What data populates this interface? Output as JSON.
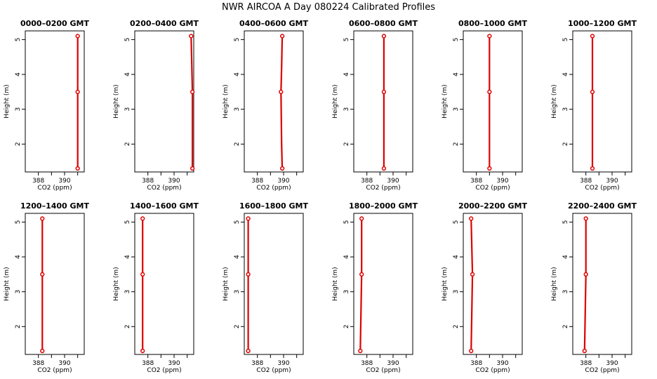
{
  "figure": {
    "title": "NWR AIRCOA A  Day 080224  Calibrated Profiles",
    "colors": {
      "line": "#dd0000",
      "axis": "#000000",
      "background": "#ffffff"
    }
  },
  "chart_data": [
    {
      "type": "line",
      "title": "0000–0200 GMT",
      "xlabel": "CO2 (ppm)",
      "ylabel": "Height (m)",
      "xlim": [
        387,
        391.5
      ],
      "ylim": [
        1.2,
        5.25
      ],
      "xticks": [
        388,
        389,
        390,
        391
      ],
      "xtick_labels": [
        "388",
        "",
        "390",
        ""
      ],
      "yticks": [
        2,
        3,
        4,
        5
      ],
      "points": {
        "x": [
          391.0,
          391.0,
          391.0
        ],
        "y": [
          1.3,
          3.5,
          5.1
        ]
      },
      "segments": [
        {
          "x": [
            391.0,
            391.0,
            391.0
          ],
          "y": [
            1.3,
            3.4,
            3.7
          ]
        },
        {
          "x": [
            391.0,
            391.0
          ],
          "y": [
            3.7,
            5.1
          ]
        }
      ]
    },
    {
      "type": "line",
      "title": "0200–0400 GMT",
      "xlabel": "CO2 (ppm)",
      "ylabel": "Height (m)",
      "xlim": [
        387,
        391.5
      ],
      "ylim": [
        1.2,
        5.25
      ],
      "xticks": [
        388,
        389,
        390,
        391
      ],
      "xtick_labels": [
        "388",
        "",
        "390",
        ""
      ],
      "yticks": [
        2,
        3,
        4,
        5
      ],
      "points": {
        "x": [
          391.4,
          391.4,
          391.3
        ],
        "y": [
          1.3,
          3.5,
          5.1
        ]
      },
      "segments": [
        {
          "x": [
            391.4,
            391.4,
            391.35
          ],
          "y": [
            1.3,
            3.5,
            4.3
          ]
        },
        {
          "x": [
            391.35,
            391.3
          ],
          "y": [
            4.3,
            5.1
          ]
        }
      ]
    },
    {
      "type": "line",
      "title": "0400–0600 GMT",
      "xlabel": "CO2 (ppm)",
      "ylabel": "Height (m)",
      "xlim": [
        387,
        391.5
      ],
      "ylim": [
        1.2,
        5.25
      ],
      "xticks": [
        388,
        389,
        390,
        391
      ],
      "xtick_labels": [
        "388",
        "",
        "390",
        ""
      ],
      "yticks": [
        2,
        3,
        4,
        5
      ],
      "points": {
        "x": [
          389.9,
          389.8,
          389.9
        ],
        "y": [
          1.3,
          3.5,
          5.1
        ]
      },
      "segments": [
        {
          "x": [
            389.9,
            389.85,
            389.8
          ],
          "y": [
            1.3,
            2.0,
            3.5
          ]
        },
        {
          "x": [
            389.8,
            389.85,
            389.9
          ],
          "y": [
            3.5,
            4.2,
            5.1
          ]
        }
      ]
    },
    {
      "type": "line",
      "title": "0600–0800 GMT",
      "xlabel": "CO2 (ppm)",
      "ylabel": "Height (m)",
      "xlim": [
        387,
        391.5
      ],
      "ylim": [
        1.2,
        5.25
      ],
      "xticks": [
        388,
        389,
        390,
        391
      ],
      "xtick_labels": [
        "388",
        "",
        "390",
        ""
      ],
      "yticks": [
        2,
        3,
        4,
        5
      ],
      "points": {
        "x": [
          389.3,
          389.3,
          389.3
        ],
        "y": [
          1.3,
          3.5,
          5.1
        ]
      },
      "segments": [
        {
          "x": [
            389.3,
            389.3
          ],
          "y": [
            1.3,
            3.5
          ]
        },
        {
          "x": [
            389.3,
            389.3
          ],
          "y": [
            3.5,
            5.1
          ]
        }
      ]
    },
    {
      "type": "line",
      "title": "0800–1000 GMT",
      "xlabel": "CO2 (ppm)",
      "ylabel": "Height (m)",
      "xlim": [
        387,
        391.5
      ],
      "ylim": [
        1.2,
        5.25
      ],
      "xticks": [
        388,
        389,
        390,
        391
      ],
      "xtick_labels": [
        "388",
        "",
        "390",
        ""
      ],
      "yticks": [
        2,
        3,
        4,
        5
      ],
      "points": {
        "x": [
          389.0,
          389.0,
          389.0
        ],
        "y": [
          1.3,
          3.5,
          5.1
        ]
      },
      "segments": [
        {
          "x": [
            389.0,
            389.0
          ],
          "y": [
            1.3,
            3.5
          ]
        },
        {
          "x": [
            389.0,
            389.0
          ],
          "y": [
            3.5,
            5.1
          ]
        }
      ]
    },
    {
      "type": "line",
      "title": "1000–1200 GMT",
      "xlabel": "CO2 (ppm)",
      "ylabel": "Height (m)",
      "xlim": [
        387,
        391.5
      ],
      "ylim": [
        1.2,
        5.25
      ],
      "xticks": [
        388,
        389,
        390,
        391
      ],
      "xtick_labels": [
        "388",
        "",
        "390",
        ""
      ],
      "yticks": [
        2,
        3,
        4,
        5
      ],
      "points": {
        "x": [
          388.5,
          388.5,
          388.5
        ],
        "y": [
          1.3,
          3.5,
          5.1
        ]
      },
      "segments": [
        {
          "x": [
            388.5,
            388.5
          ],
          "y": [
            1.3,
            3.5
          ]
        },
        {
          "x": [
            388.5,
            388.5
          ],
          "y": [
            3.5,
            5.1
          ]
        }
      ]
    },
    {
      "type": "line",
      "title": "1200–1400 GMT",
      "xlabel": "CO2 (ppm)",
      "ylabel": "Height (m)",
      "xlim": [
        387,
        391.5
      ],
      "ylim": [
        1.2,
        5.25
      ],
      "xticks": [
        388,
        389,
        390,
        391
      ],
      "xtick_labels": [
        "388",
        "",
        "390",
        ""
      ],
      "yticks": [
        2,
        3,
        4,
        5
      ],
      "points": {
        "x": [
          388.3,
          388.3,
          388.3
        ],
        "y": [
          1.3,
          3.5,
          5.1
        ]
      },
      "segments": [
        {
          "x": [
            388.3,
            388.3
          ],
          "y": [
            1.3,
            3.5
          ]
        },
        {
          "x": [
            388.3,
            388.3
          ],
          "y": [
            3.5,
            5.1
          ]
        }
      ]
    },
    {
      "type": "line",
      "title": "1400–1600 GMT",
      "xlabel": "CO2 (ppm)",
      "ylabel": "Height (m)",
      "xlim": [
        387,
        391.5
      ],
      "ylim": [
        1.2,
        5.25
      ],
      "xticks": [
        388,
        389,
        390,
        391
      ],
      "xtick_labels": [
        "388",
        "",
        "390",
        ""
      ],
      "yticks": [
        2,
        3,
        4,
        5
      ],
      "points": {
        "x": [
          387.6,
          387.6,
          387.6
        ],
        "y": [
          1.3,
          3.5,
          5.1
        ]
      },
      "segments": [
        {
          "x": [
            387.6,
            387.6
          ],
          "y": [
            1.3,
            3.5
          ]
        },
        {
          "x": [
            387.6,
            387.6
          ],
          "y": [
            3.5,
            5.1
          ]
        }
      ]
    },
    {
      "type": "line",
      "title": "1600–1800 GMT",
      "xlabel": "CO2 (ppm)",
      "ylabel": "Height (m)",
      "xlim": [
        387,
        391.5
      ],
      "ylim": [
        1.2,
        5.25
      ],
      "xticks": [
        388,
        389,
        390,
        391
      ],
      "xtick_labels": [
        "388",
        "",
        "390",
        ""
      ],
      "yticks": [
        2,
        3,
        4,
        5
      ],
      "points": {
        "x": [
          387.3,
          387.3,
          387.3
        ],
        "y": [
          1.3,
          3.5,
          5.1
        ]
      },
      "segments": [
        {
          "x": [
            387.3,
            387.3
          ],
          "y": [
            1.3,
            3.5
          ]
        },
        {
          "x": [
            387.3,
            387.3
          ],
          "y": [
            3.5,
            5.1
          ]
        }
      ]
    },
    {
      "type": "line",
      "title": "1800–2000 GMT",
      "xlabel": "CO2 (ppm)",
      "ylabel": "Height (m)",
      "xlim": [
        387,
        391.5
      ],
      "ylim": [
        1.2,
        5.25
      ],
      "xticks": [
        388,
        389,
        390,
        391
      ],
      "xtick_labels": [
        "388",
        "",
        "390",
        ""
      ],
      "yticks": [
        2,
        3,
        4,
        5
      ],
      "points": {
        "x": [
          387.5,
          387.6,
          387.6
        ],
        "y": [
          1.3,
          3.5,
          5.1
        ]
      },
      "segments": [
        {
          "x": [
            387.5,
            387.6
          ],
          "y": [
            1.3,
            3.5
          ]
        },
        {
          "x": [
            387.6,
            387.6
          ],
          "y": [
            3.5,
            5.1
          ]
        }
      ]
    },
    {
      "type": "line",
      "title": "2000–2200 GMT",
      "xlabel": "CO2 (ppm)",
      "ylabel": "Height (m)",
      "xlim": [
        387,
        391.5
      ],
      "ylim": [
        1.2,
        5.25
      ],
      "xticks": [
        388,
        389,
        390,
        391
      ],
      "xtick_labels": [
        "388",
        "",
        "390",
        ""
      ],
      "yticks": [
        2,
        3,
        4,
        5
      ],
      "points": {
        "x": [
          387.6,
          387.7,
          387.6
        ],
        "y": [
          1.3,
          3.5,
          5.1
        ]
      },
      "segments": [
        {
          "x": [
            387.6,
            387.7
          ],
          "y": [
            1.3,
            3.5
          ]
        },
        {
          "x": [
            387.7,
            387.6
          ],
          "y": [
            3.5,
            5.1
          ]
        }
      ]
    },
    {
      "type": "line",
      "title": "2200–2400 GMT",
      "xlabel": "CO2 (ppm)",
      "ylabel": "Height (m)",
      "xlim": [
        387,
        391.5
      ],
      "ylim": [
        1.2,
        5.25
      ],
      "xticks": [
        388,
        389,
        390,
        391
      ],
      "xtick_labels": [
        "388",
        "",
        "390",
        ""
      ],
      "yticks": [
        2,
        3,
        4,
        5
      ],
      "points": {
        "x": [
          387.9,
          388.0,
          388.0
        ],
        "y": [
          1.3,
          3.5,
          5.1
        ]
      },
      "segments": [
        {
          "x": [
            387.9,
            388.0
          ],
          "y": [
            1.3,
            3.5
          ]
        },
        {
          "x": [
            388.0,
            388.0
          ],
          "y": [
            3.5,
            5.1
          ]
        }
      ]
    }
  ]
}
